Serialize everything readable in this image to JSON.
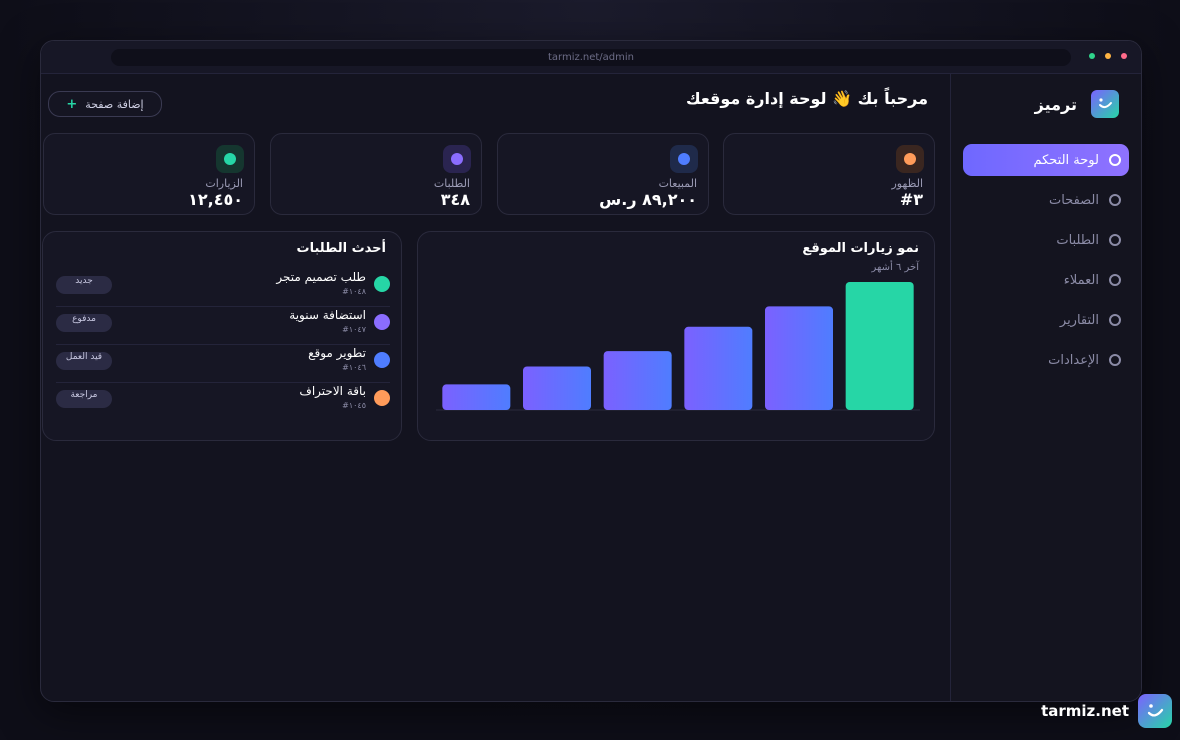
{
  "browser": {
    "url": "tarmiz.net/admin"
  },
  "brand": {
    "name": "ترميز"
  },
  "sidebar": {
    "items": [
      {
        "label": "لوحة التحكم",
        "active": true
      },
      {
        "label": "الصفحات",
        "active": false
      },
      {
        "label": "الطلبات",
        "active": false
      },
      {
        "label": "العملاء",
        "active": false
      },
      {
        "label": "التقارير",
        "active": false
      },
      {
        "label": "الإعدادات",
        "active": false
      }
    ]
  },
  "header": {
    "greeting": "مرحباً بك 👋 لوحة إدارة موقعك",
    "add_page_label": "إضافة صفحة",
    "add_page_icon": "+"
  },
  "stats": [
    {
      "label": "الظهور",
      "value": "#٣",
      "color": "#ff9b5a",
      "bg": "#3a2620"
    },
    {
      "label": "المبيعات",
      "value": "٨٩,٢٠٠ ر.س",
      "color": "#4f7dff",
      "bg": "#1f2a4a"
    },
    {
      "label": "الطلبات",
      "value": "٣٤٨",
      "color": "#8b6dff",
      "bg": "#2a2450"
    },
    {
      "label": "الزيارات",
      "value": "١٢,٤٥٠",
      "color": "#26d6a6",
      "bg": "#15362f"
    }
  ],
  "chart_panel": {
    "title": "نمو زيارات الموقع",
    "subtitle": "آخر ٦ أشهر"
  },
  "chart_data": {
    "type": "bar",
    "categories": [
      "",
      "",
      "",
      "",
      "",
      ""
    ],
    "values": [
      20,
      34,
      46,
      65,
      81,
      100
    ],
    "ylim": [
      0,
      100
    ],
    "grid": false,
    "colors": [
      "#7b61ff",
      "#4f7dff",
      "#26d6a6"
    ]
  },
  "orders_panel": {
    "title": "أحدث الطلبات",
    "orders": [
      {
        "title": "طلب تصميم متجر",
        "id": "#١٠٤٨",
        "status": "جديد",
        "color": "#26d6a6"
      },
      {
        "title": "استضافة سنوية",
        "id": "#١٠٤٧",
        "status": "مدفوع",
        "color": "#8b6dff"
      },
      {
        "title": "تطوير موقع",
        "id": "#١٠٤٦",
        "status": "قيد العمل",
        "color": "#4f7dff"
      },
      {
        "title": "باقة الاحتراف",
        "id": "#١٠٤٥",
        "status": "مراجعة",
        "color": "#ff9b5a"
      }
    ]
  },
  "footer": {
    "domain": "tarmiz.net"
  }
}
